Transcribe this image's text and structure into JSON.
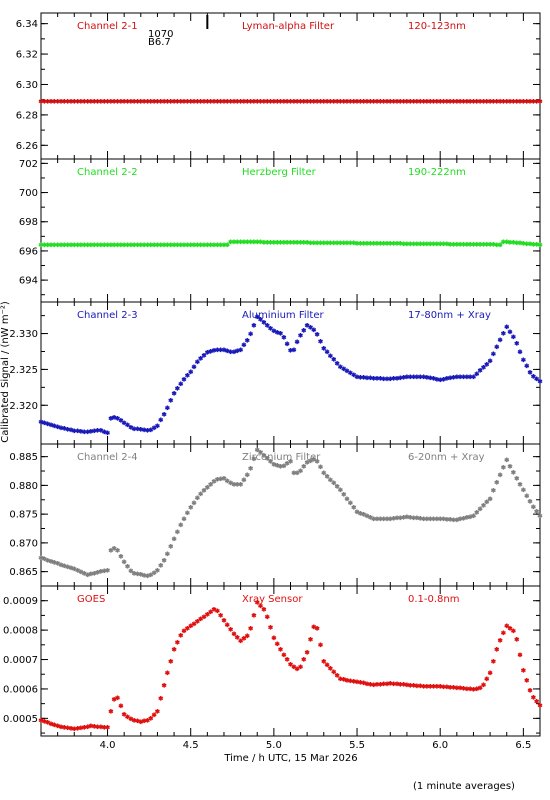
{
  "figure": {
    "ylabel": "Calibrated Signal / (nW m⁻²)",
    "xlabel": "Time / h UTC, 15 Mar 2026",
    "footer": "(1 minute averages)"
  },
  "chart_data": [
    {
      "type": "scatter",
      "label_left": "Channel 2-1",
      "label_mid": "Lyman-alpha Filter",
      "label_right": "120-123nm",
      "color": "#d01010",
      "xlim": [
        3.6,
        6.6
      ],
      "ylim": [
        6.251,
        6.347
      ],
      "yticks": [
        6.26,
        6.28,
        6.3,
        6.32,
        6.34
      ],
      "ytick_labels": [
        "6.26",
        "6.28",
        "6.30",
        "6.32",
        "6.34"
      ],
      "annotation_lines": [
        "1070",
        "B6.7"
      ],
      "x": [
        3.6,
        6.6
      ],
      "y": [
        6.288,
        6.288
      ]
    },
    {
      "type": "scatter",
      "label_left": "Channel 2-2",
      "label_mid": "Herzberg Filter",
      "label_right": "190-222nm",
      "color": "#22dd22",
      "xlim": [
        3.6,
        6.6
      ],
      "ylim": [
        692.5,
        702.3
      ],
      "yticks": [
        694,
        696,
        698,
        700,
        702
      ],
      "ytick_labels": [
        "694",
        "696",
        "698",
        "700",
        "702"
      ],
      "x": [
        3.6,
        4.72,
        4.74,
        6.36,
        6.38,
        6.6
      ],
      "y": [
        696.35,
        696.35,
        696.55,
        696.35,
        696.55,
        696.35
      ]
    },
    {
      "type": "scatter",
      "label_left": "Channel 2-3",
      "label_mid": "Aluminium Filter",
      "label_right": "17-80nm + Xray",
      "color": "#1a1ab8",
      "xlim": [
        3.6,
        6.6
      ],
      "ylim": [
        2.3146,
        2.3344
      ],
      "yticks": [
        2.32,
        2.325,
        2.33
      ],
      "ytick_labels": [
        "2.320",
        "2.325",
        "2.330"
      ],
      "x": [
        3.6,
        3.7,
        3.8,
        3.88,
        3.95,
        4.0,
        4.02,
        4.05,
        4.1,
        4.15,
        4.2,
        4.25,
        4.3,
        4.35,
        4.4,
        4.45,
        4.5,
        4.55,
        4.6,
        4.65,
        4.7,
        4.75,
        4.8,
        4.85,
        4.9,
        4.95,
        5.0,
        5.05,
        5.1,
        5.12,
        5.15,
        5.2,
        5.25,
        5.3,
        5.4,
        5.5,
        5.6,
        5.7,
        5.8,
        5.9,
        6.0,
        6.1,
        6.2,
        6.3,
        6.35,
        6.4,
        6.45,
        6.5,
        6.55,
        6.6
      ],
      "y": [
        2.3175,
        2.3168,
        2.3163,
        2.3161,
        2.3164,
        2.316,
        2.318,
        2.3182,
        2.3174,
        2.3166,
        2.3165,
        2.3163,
        2.317,
        2.319,
        2.3215,
        2.3232,
        2.3245,
        2.3262,
        2.3272,
        2.3276,
        2.3276,
        2.3272,
        2.3276,
        2.3292,
        2.3322,
        2.3312,
        2.3302,
        2.3298,
        2.3275,
        2.3276,
        2.3292,
        2.331,
        2.3302,
        2.3278,
        2.3252,
        2.3238,
        2.3236,
        2.3235,
        2.3238,
        2.3238,
        2.3234,
        2.3238,
        2.3238,
        2.326,
        2.3285,
        2.3308,
        2.329,
        2.3262,
        2.324,
        2.3232
      ]
    },
    {
      "type": "scatter",
      "label_left": "Channel 2-4",
      "label_mid": "Zirconium Filter",
      "label_right": "6-20nm + Xray",
      "color": "#808080",
      "xlim": [
        3.6,
        6.6
      ],
      "ylim": [
        0.8625,
        0.8872
      ],
      "yticks": [
        0.865,
        0.87,
        0.875,
        0.88,
        0.885
      ],
      "ytick_labels": [
        "0.865",
        "0.870",
        "0.875",
        "0.880",
        "0.885"
      ],
      "x": [
        3.6,
        3.7,
        3.8,
        3.88,
        3.95,
        4.0,
        4.02,
        4.05,
        4.1,
        4.15,
        4.2,
        4.25,
        4.3,
        4.35,
        4.4,
        4.45,
        4.5,
        4.55,
        4.6,
        4.65,
        4.7,
        4.75,
        4.8,
        4.85,
        4.9,
        4.95,
        5.0,
        5.05,
        5.1,
        5.12,
        5.15,
        5.2,
        5.25,
        5.3,
        5.4,
        5.5,
        5.6,
        5.7,
        5.8,
        5.9,
        6.0,
        6.1,
        6.2,
        6.3,
        6.35,
        6.4,
        6.45,
        6.5,
        6.55,
        6.6
      ],
      "y": [
        0.8672,
        0.8662,
        0.8653,
        0.8642,
        0.8648,
        0.865,
        0.8685,
        0.869,
        0.8665,
        0.8645,
        0.8643,
        0.864,
        0.865,
        0.8672,
        0.8705,
        0.8735,
        0.876,
        0.878,
        0.8795,
        0.8808,
        0.881,
        0.88,
        0.88,
        0.882,
        0.886,
        0.8848,
        0.8835,
        0.883,
        0.884,
        0.882,
        0.882,
        0.8838,
        0.8845,
        0.882,
        0.879,
        0.8752,
        0.874,
        0.874,
        0.8743,
        0.874,
        0.874,
        0.8738,
        0.8745,
        0.8775,
        0.881,
        0.8842,
        0.8815,
        0.879,
        0.8765,
        0.8745
      ]
    },
    {
      "type": "scatter",
      "label_left": "GOES",
      "label_mid": "Xray Sensor",
      "label_right": "0.1-0.8nm",
      "color": "#e01010",
      "xlim": [
        3.6,
        6.6
      ],
      "ylim": [
        0.00044,
        0.00095
      ],
      "yticks": [
        0.0005,
        0.0006,
        0.0007,
        0.0008,
        0.0009
      ],
      "ytick_labels": [
        "0.0005",
        "0.0006",
        "0.0007",
        "0.0008",
        "0.0009"
      ],
      "x": [
        3.6,
        3.7,
        3.8,
        3.9,
        4.0,
        4.02,
        4.05,
        4.1,
        4.15,
        4.2,
        4.25,
        4.3,
        4.35,
        4.4,
        4.45,
        4.5,
        4.55,
        4.6,
        4.65,
        4.7,
        4.75,
        4.8,
        4.85,
        4.9,
        4.95,
        5.0,
        5.05,
        5.1,
        5.15,
        5.2,
        5.25,
        5.3,
        5.4,
        5.5,
        5.6,
        5.7,
        5.8,
        5.9,
        6.0,
        6.1,
        6.2,
        6.25,
        6.3,
        6.35,
        6.4,
        6.45,
        6.5,
        6.55,
        6.6
      ],
      "y": [
        0.00049,
        0.00047,
        0.00046,
        0.00047,
        0.000465,
        0.00052,
        0.00058,
        0.00051,
        0.00049,
        0.000485,
        0.00049,
        0.00052,
        0.00063,
        0.00073,
        0.00079,
        0.00081,
        0.00083,
        0.00085,
        0.00087,
        0.00083,
        0.00079,
        0.00076,
        0.00078,
        0.00089,
        0.00086,
        0.00077,
        0.00072,
        0.00068,
        0.00066,
        0.00072,
        0.00083,
        0.00069,
        0.00063,
        0.00062,
        0.00061,
        0.000615,
        0.00061,
        0.000605,
        0.000605,
        0.0006,
        0.000595,
        0.0006,
        0.00065,
        0.00075,
        0.00081,
        0.00079,
        0.00066,
        0.000575,
        0.00054
      ]
    }
  ],
  "chart_xaxis": {
    "ticks": [
      4.0,
      4.5,
      5.0,
      5.5,
      6.0,
      6.5
    ],
    "tick_labels": [
      "4.0",
      "4.5",
      "5.0",
      "5.5",
      "6.0",
      "6.5"
    ]
  }
}
